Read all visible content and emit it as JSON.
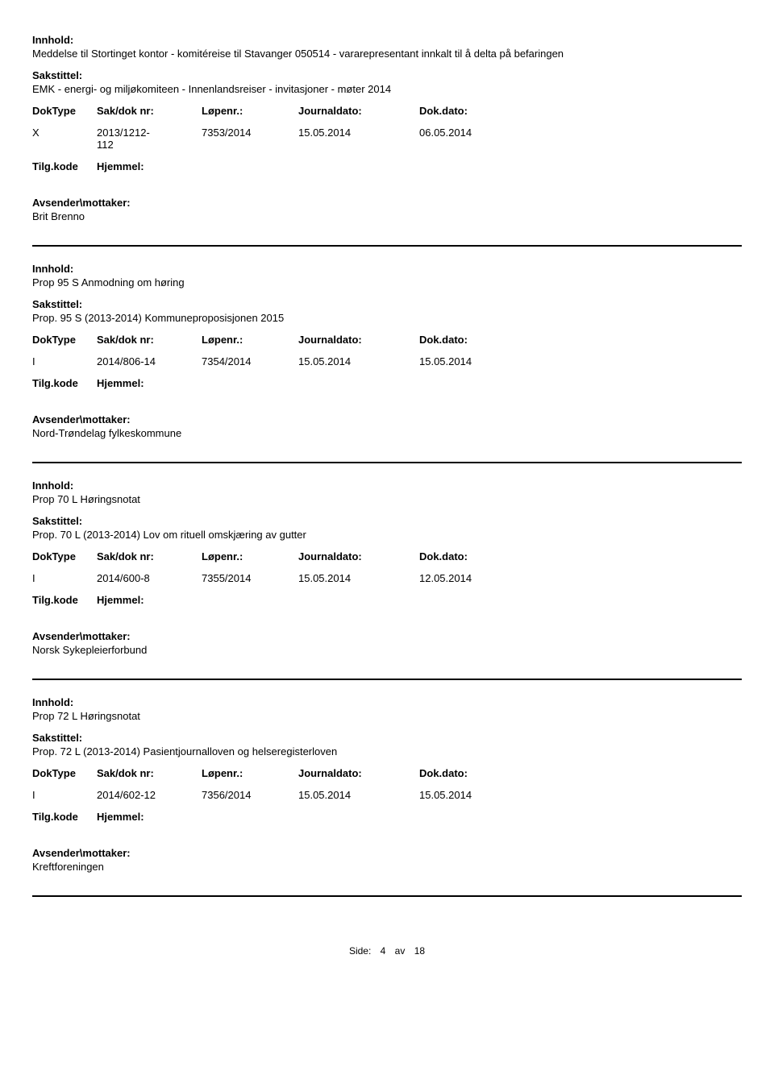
{
  "labels": {
    "innhold": "Innhold:",
    "sakstittel": "Sakstittel:",
    "doktype": "DokType",
    "sakdok": "Sak/dok nr:",
    "lopenr": "Løpenr.:",
    "journaldato": "Journaldato:",
    "dokdato": "Dok.dato:",
    "tilgkode": "Tilg.kode",
    "hjemmel": "Hjemmel:",
    "avsender": "Avsender\\mottaker:"
  },
  "records": [
    {
      "innhold": "Meddelse til Stortinget kontor - komitéreise til Stavanger 050514 - vararepresentant innkalt til å delta på befaringen",
      "sakstittel": "EMK - energi- og miljøkomiteen - Innenlandsreiser - invitasjoner - møter 2014",
      "doktype": "X",
      "sakdok1": "2013/1212-",
      "sakdok2": "112",
      "lopenr": "7353/2014",
      "journaldato": "15.05.2014",
      "dokdato": "06.05.2014",
      "avsender": "Brit Brenno"
    },
    {
      "innhold": "Prop 95 S Anmodning om høring",
      "sakstittel": "Prop. 95 S (2013-2014) Kommuneproposisjonen 2015",
      "doktype": "I",
      "sakdok1": "2014/806-14",
      "sakdok2": "",
      "lopenr": "7354/2014",
      "journaldato": "15.05.2014",
      "dokdato": "15.05.2014",
      "avsender": "Nord-Trøndelag fylkeskommune"
    },
    {
      "innhold": "Prop 70 L Høringsnotat",
      "sakstittel": "Prop. 70 L (2013-2014) Lov om rituell omskjæring av gutter",
      "doktype": "I",
      "sakdok1": "2014/600-8",
      "sakdok2": "",
      "lopenr": "7355/2014",
      "journaldato": "15.05.2014",
      "dokdato": "12.05.2014",
      "avsender": "Norsk Sykepleierforbund"
    },
    {
      "innhold": "Prop 72 L Høringsnotat",
      "sakstittel": "Prop. 72 L (2013-2014) Pasientjournalloven og helseregisterloven",
      "doktype": "I",
      "sakdok1": "2014/602-12",
      "sakdok2": "",
      "lopenr": "7356/2014",
      "journaldato": "15.05.2014",
      "dokdato": "15.05.2014",
      "avsender": "Kreftforeningen"
    }
  ],
  "footer": {
    "side": "Side:",
    "page": "4",
    "av": "av",
    "total": "18"
  }
}
